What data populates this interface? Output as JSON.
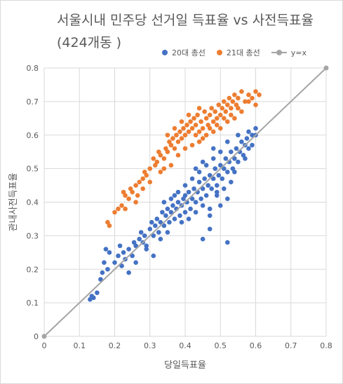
{
  "chart_data": {
    "type": "scatter",
    "title": "서울시내 민주당 선거일 득표율 vs 사전득표율\n(424개동 )",
    "xlabel": "당일득표율",
    "ylabel": "관내사전득표율",
    "xlim": [
      0,
      0.8
    ],
    "ylim": [
      0,
      0.8
    ],
    "xticks": [
      "0",
      "0.1",
      "0.2",
      "0.3",
      "0.4",
      "0.5",
      "0.6",
      "0.7",
      "0.8"
    ],
    "yticks": [
      "0",
      "0.1",
      "0.2",
      "0.3",
      "0.4",
      "0.5",
      "0.6",
      "0.7",
      "0.8"
    ],
    "grid": true,
    "legend_position": "top",
    "series": [
      {
        "name": "20대 총선",
        "color": "#4472c4",
        "points": [
          [
            0.13,
            0.11
          ],
          [
            0.135,
            0.12
          ],
          [
            0.14,
            0.115
          ],
          [
            0.15,
            0.13
          ],
          [
            0.16,
            0.17
          ],
          [
            0.165,
            0.19
          ],
          [
            0.17,
            0.22
          ],
          [
            0.175,
            0.26
          ],
          [
            0.18,
            0.2
          ],
          [
            0.185,
            0.25
          ],
          [
            0.2,
            0.22
          ],
          [
            0.21,
            0.24
          ],
          [
            0.215,
            0.27
          ],
          [
            0.22,
            0.21
          ],
          [
            0.225,
            0.25
          ],
          [
            0.23,
            0.23
          ],
          [
            0.24,
            0.26
          ],
          [
            0.25,
            0.24
          ],
          [
            0.255,
            0.28
          ],
          [
            0.26,
            0.27
          ],
          [
            0.27,
            0.29
          ],
          [
            0.275,
            0.31
          ],
          [
            0.28,
            0.28
          ],
          [
            0.285,
            0.3
          ],
          [
            0.29,
            0.27
          ],
          [
            0.3,
            0.32
          ],
          [
            0.305,
            0.34
          ],
          [
            0.31,
            0.3
          ],
          [
            0.315,
            0.33
          ],
          [
            0.32,
            0.35
          ],
          [
            0.325,
            0.31
          ],
          [
            0.33,
            0.34
          ],
          [
            0.335,
            0.37
          ],
          [
            0.34,
            0.33
          ],
          [
            0.345,
            0.36
          ],
          [
            0.35,
            0.38
          ],
          [
            0.355,
            0.34
          ],
          [
            0.36,
            0.37
          ],
          [
            0.365,
            0.39
          ],
          [
            0.37,
            0.35
          ],
          [
            0.375,
            0.38
          ],
          [
            0.38,
            0.4
          ],
          [
            0.385,
            0.36
          ],
          [
            0.39,
            0.39
          ],
          [
            0.395,
            0.41
          ],
          [
            0.4,
            0.37
          ],
          [
            0.4,
            0.42
          ],
          [
            0.405,
            0.4
          ],
          [
            0.41,
            0.43
          ],
          [
            0.415,
            0.38
          ],
          [
            0.42,
            0.41
          ],
          [
            0.425,
            0.44
          ],
          [
            0.43,
            0.4
          ],
          [
            0.435,
            0.43
          ],
          [
            0.44,
            0.46
          ],
          [
            0.445,
            0.41
          ],
          [
            0.45,
            0.44
          ],
          [
            0.455,
            0.47
          ],
          [
            0.46,
            0.42
          ],
          [
            0.465,
            0.45
          ],
          [
            0.47,
            0.48
          ],
          [
            0.475,
            0.44
          ],
          [
            0.48,
            0.47
          ],
          [
            0.485,
            0.5
          ],
          [
            0.49,
            0.45
          ],
          [
            0.495,
            0.48
          ],
          [
            0.5,
            0.51
          ],
          [
            0.505,
            0.47
          ],
          [
            0.51,
            0.5
          ],
          [
            0.515,
            0.53
          ],
          [
            0.52,
            0.49
          ],
          [
            0.525,
            0.52
          ],
          [
            0.53,
            0.55
          ],
          [
            0.535,
            0.5
          ],
          [
            0.54,
            0.53
          ],
          [
            0.545,
            0.56
          ],
          [
            0.55,
            0.52
          ],
          [
            0.555,
            0.55
          ],
          [
            0.56,
            0.58
          ],
          [
            0.565,
            0.54
          ],
          [
            0.57,
            0.57
          ],
          [
            0.575,
            0.59
          ],
          [
            0.58,
            0.56
          ],
          [
            0.59,
            0.6
          ],
          [
            0.6,
            0.62
          ],
          [
            0.36,
            0.41
          ],
          [
            0.38,
            0.43
          ],
          [
            0.42,
            0.47
          ],
          [
            0.44,
            0.49
          ],
          [
            0.46,
            0.51
          ],
          [
            0.48,
            0.53
          ],
          [
            0.5,
            0.55
          ],
          [
            0.33,
            0.29
          ],
          [
            0.35,
            0.31
          ],
          [
            0.39,
            0.34
          ],
          [
            0.41,
            0.35
          ],
          [
            0.43,
            0.37
          ],
          [
            0.45,
            0.39
          ],
          [
            0.47,
            0.38
          ],
          [
            0.49,
            0.42
          ],
          [
            0.51,
            0.44
          ],
          [
            0.53,
            0.46
          ],
          [
            0.47,
            0.36
          ],
          [
            0.5,
            0.39
          ],
          [
            0.52,
            0.41
          ],
          [
            0.45,
            0.29
          ],
          [
            0.52,
            0.28
          ],
          [
            0.47,
            0.32
          ],
          [
            0.31,
            0.24
          ],
          [
            0.29,
            0.26
          ],
          [
            0.24,
            0.19
          ],
          [
            0.26,
            0.22
          ],
          [
            0.34,
            0.4
          ],
          [
            0.37,
            0.42
          ],
          [
            0.4,
            0.45
          ],
          [
            0.43,
            0.5
          ],
          [
            0.45,
            0.52
          ],
          [
            0.48,
            0.56
          ],
          [
            0.52,
            0.58
          ],
          [
            0.55,
            0.6
          ],
          [
            0.58,
            0.61
          ],
          [
            0.6,
            0.6
          ],
          [
            0.57,
            0.53
          ],
          [
            0.59,
            0.57
          ],
          [
            0.54,
            0.49
          ],
          [
            0.49,
            0.43
          ]
        ]
      },
      {
        "name": "21대 총선",
        "color": "#ed7d31",
        "points": [
          [
            0.18,
            0.34
          ],
          [
            0.185,
            0.33
          ],
          [
            0.2,
            0.37
          ],
          [
            0.21,
            0.38
          ],
          [
            0.22,
            0.39
          ],
          [
            0.225,
            0.43
          ],
          [
            0.23,
            0.42
          ],
          [
            0.24,
            0.41
          ],
          [
            0.245,
            0.44
          ],
          [
            0.25,
            0.43
          ],
          [
            0.26,
            0.45
          ],
          [
            0.265,
            0.42
          ],
          [
            0.27,
            0.46
          ],
          [
            0.28,
            0.47
          ],
          [
            0.285,
            0.49
          ],
          [
            0.29,
            0.48
          ],
          [
            0.3,
            0.5
          ],
          [
            0.31,
            0.53
          ],
          [
            0.315,
            0.51
          ],
          [
            0.32,
            0.52
          ],
          [
            0.325,
            0.55
          ],
          [
            0.33,
            0.54
          ],
          [
            0.34,
            0.53
          ],
          [
            0.345,
            0.56
          ],
          [
            0.35,
            0.55
          ],
          [
            0.355,
            0.58
          ],
          [
            0.36,
            0.57
          ],
          [
            0.365,
            0.59
          ],
          [
            0.37,
            0.56
          ],
          [
            0.375,
            0.6
          ],
          [
            0.38,
            0.58
          ],
          [
            0.385,
            0.61
          ],
          [
            0.39,
            0.59
          ],
          [
            0.395,
            0.62
          ],
          [
            0.4,
            0.6
          ],
          [
            0.405,
            0.63
          ],
          [
            0.41,
            0.61
          ],
          [
            0.415,
            0.64
          ],
          [
            0.42,
            0.62
          ],
          [
            0.425,
            0.65
          ],
          [
            0.43,
            0.63
          ],
          [
            0.435,
            0.66
          ],
          [
            0.44,
            0.61
          ],
          [
            0.445,
            0.64
          ],
          [
            0.45,
            0.62
          ],
          [
            0.455,
            0.67
          ],
          [
            0.46,
            0.65
          ],
          [
            0.465,
            0.63
          ],
          [
            0.47,
            0.66
          ],
          [
            0.475,
            0.68
          ],
          [
            0.48,
            0.64
          ],
          [
            0.485,
            0.67
          ],
          [
            0.49,
            0.65
          ],
          [
            0.495,
            0.69
          ],
          [
            0.5,
            0.66
          ],
          [
            0.505,
            0.68
          ],
          [
            0.51,
            0.7
          ],
          [
            0.515,
            0.67
          ],
          [
            0.52,
            0.69
          ],
          [
            0.525,
            0.71
          ],
          [
            0.53,
            0.68
          ],
          [
            0.535,
            0.7
          ],
          [
            0.54,
            0.72
          ],
          [
            0.545,
            0.69
          ],
          [
            0.55,
            0.71
          ],
          [
            0.56,
            0.73
          ],
          [
            0.57,
            0.7
          ],
          [
            0.58,
            0.72
          ],
          [
            0.59,
            0.71
          ],
          [
            0.6,
            0.73
          ],
          [
            0.61,
            0.72
          ],
          [
            0.34,
            0.5
          ],
          [
            0.36,
            0.51
          ],
          [
            0.38,
            0.54
          ],
          [
            0.4,
            0.56
          ],
          [
            0.42,
            0.57
          ],
          [
            0.44,
            0.58
          ],
          [
            0.46,
            0.6
          ],
          [
            0.48,
            0.61
          ],
          [
            0.5,
            0.62
          ],
          [
            0.52,
            0.64
          ],
          [
            0.54,
            0.65
          ],
          [
            0.56,
            0.67
          ],
          [
            0.3,
            0.46
          ],
          [
            0.33,
            0.49
          ],
          [
            0.37,
            0.62
          ],
          [
            0.39,
            0.64
          ],
          [
            0.41,
            0.66
          ],
          [
            0.43,
            0.6
          ],
          [
            0.45,
            0.59
          ],
          [
            0.47,
            0.62
          ],
          [
            0.49,
            0.63
          ],
          [
            0.51,
            0.65
          ],
          [
            0.53,
            0.66
          ],
          [
            0.28,
            0.44
          ],
          [
            0.26,
            0.4
          ],
          [
            0.23,
            0.38
          ],
          [
            0.35,
            0.6
          ],
          [
            0.44,
            0.68
          ],
          [
            0.58,
            0.7
          ],
          [
            0.6,
            0.69
          ],
          [
            0.55,
            0.68
          ]
        ]
      },
      {
        "name": "y=x",
        "color": "#a5a5a5",
        "type": "line",
        "points": [
          [
            0,
            0
          ],
          [
            0.8,
            0.8
          ]
        ]
      }
    ]
  }
}
